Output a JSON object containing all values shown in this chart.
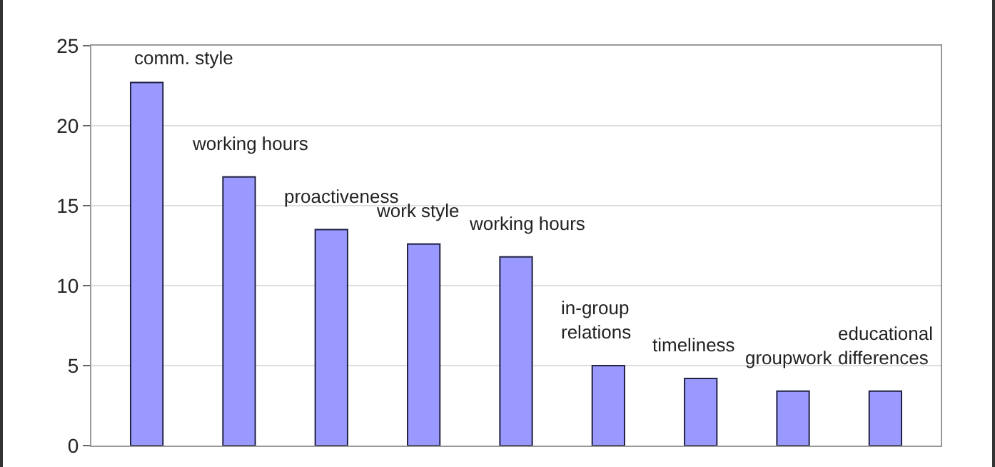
{
  "chart_data": {
    "type": "bar",
    "categories": [
      null,
      null,
      null,
      null,
      null,
      null,
      null,
      null,
      null
    ],
    "values": [
      22.7,
      16.8,
      13.5,
      12.6,
      11.8,
      5.0,
      4.2,
      3.4,
      3.4
    ],
    "annotations": [
      "comm. style",
      "working hours",
      "proactiveness",
      "work style",
      "working hours",
      "in-group\nrelations",
      "timeliness",
      "groupwork",
      "educational\ndifferences"
    ],
    "color": "#9999ff",
    "ylim": [
      0,
      25
    ],
    "yticks": [
      0,
      5,
      10,
      15,
      20,
      25
    ],
    "grid": "y",
    "tick_labels": "y"
  }
}
